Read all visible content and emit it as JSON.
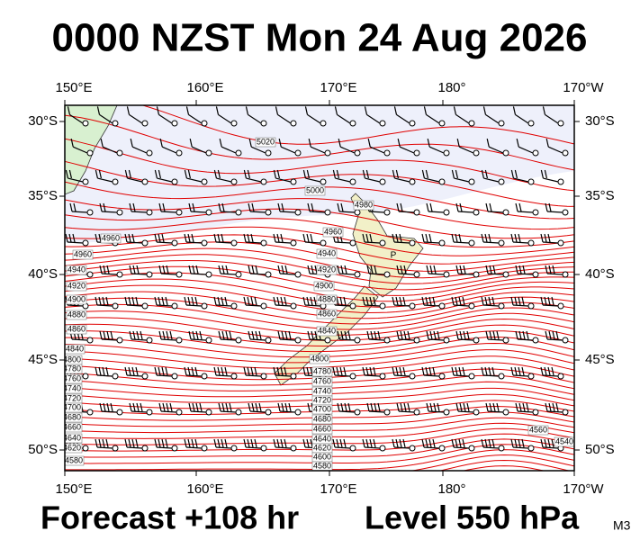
{
  "title": "0000 NZST Mon 24 Aug 2026",
  "map": {
    "top_lon_labels": [
      "150°E",
      "160°E",
      "170°E",
      "180°",
      "170°W"
    ],
    "bottom_lon_labels": [
      "150°E",
      "160°E",
      "170°E",
      "180°",
      "170°W"
    ],
    "left_lat_labels": [
      "30°S",
      "35°S",
      "40°S",
      "45°S",
      "50°S"
    ],
    "right_lat_labels": [
      "30°S",
      "35°S",
      "40°S",
      "45°S",
      "50°S"
    ],
    "contour_labels": [
      "5020",
      "5000",
      "4980",
      "4960",
      "4940",
      "4920",
      "4900",
      "4880",
      "4860",
      "4840",
      "4800",
      "4780",
      "4760",
      "4740",
      "4720",
      "4700",
      "4680",
      "4660",
      "4640",
      "4620",
      "4600",
      "4580",
      "4960",
      "4960",
      "4940",
      "4920",
      "4900",
      "4880",
      "4860",
      "4840",
      "4800",
      "4780",
      "4760",
      "4740",
      "4720",
      "4700",
      "4680",
      "4660",
      "4640",
      "4620",
      "4580",
      "4560",
      "4540"
    ],
    "pressure_marker": "P"
  },
  "footer": {
    "forecast": "Forecast +108 hr",
    "level": "Level 550 hPa",
    "code": "M3"
  }
}
